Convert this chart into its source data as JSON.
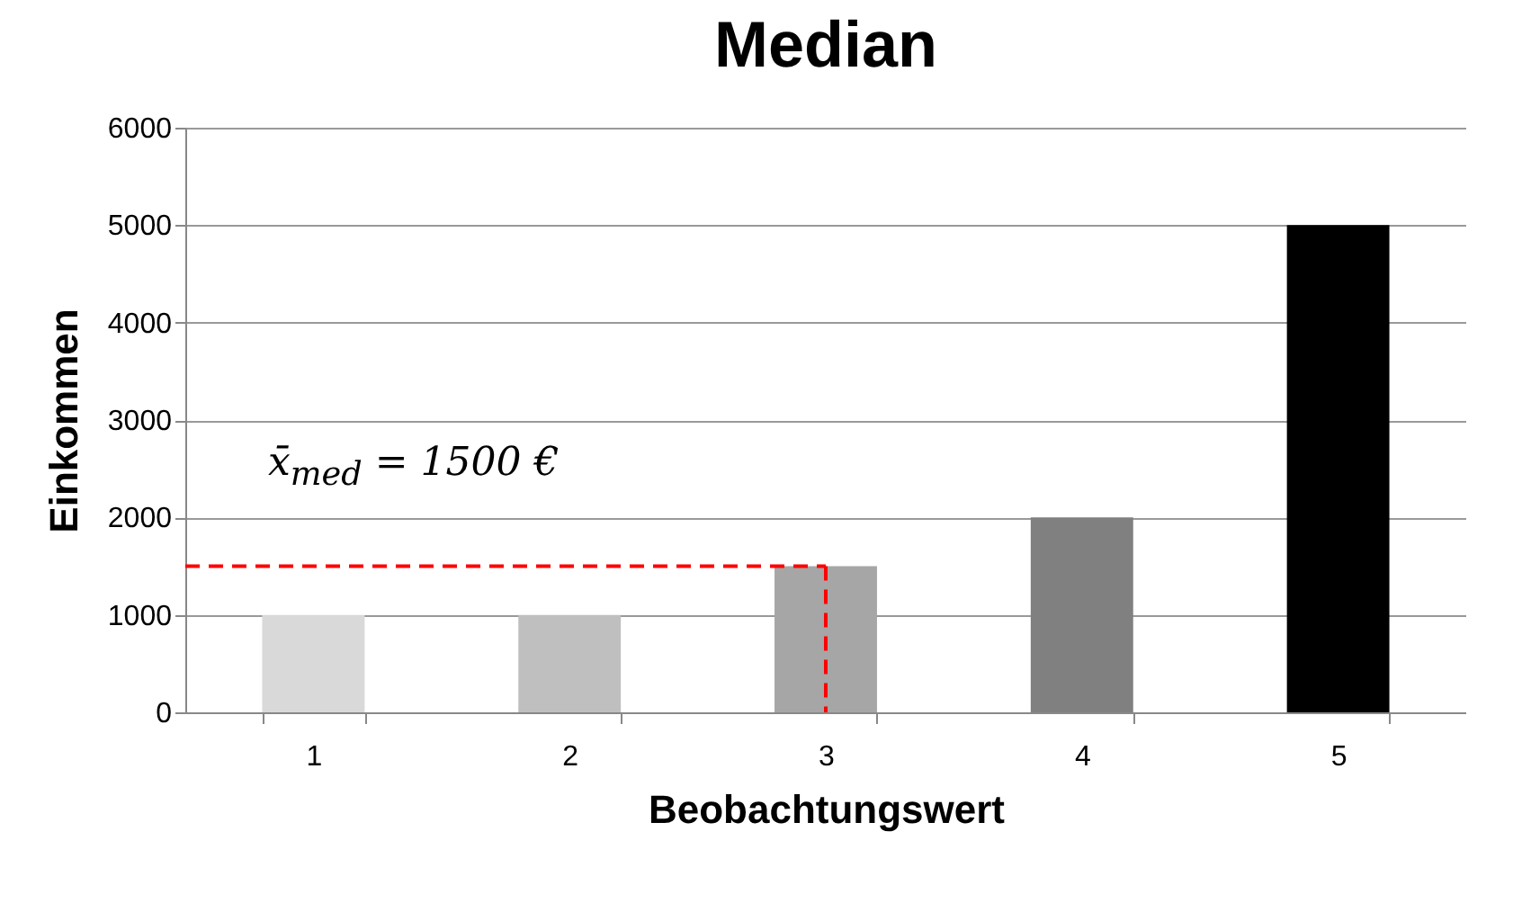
{
  "chart_data": {
    "type": "bar",
    "title": "Median",
    "xlabel": "Beobachtungswert",
    "ylabel": "Einkommen",
    "categories": [
      "1",
      "2",
      "3",
      "4",
      "5"
    ],
    "values": [
      1000,
      1000,
      1500,
      2000,
      5000
    ],
    "colors": [
      "#d9d9d9",
      "#bfbfbf",
      "#a6a6a6",
      "#808080",
      "#000000"
    ],
    "ylim": [
      0,
      6000
    ],
    "yticks": [
      0,
      1000,
      2000,
      3000,
      4000,
      5000,
      6000
    ],
    "grid": "y",
    "ref_lines": [
      {
        "axis": "y",
        "value": 1500,
        "color": "#ff0000",
        "line_style": "dashed"
      },
      {
        "axis": "x",
        "value": "3",
        "color": "#ff0000",
        "line_style": "dashed"
      }
    ],
    "annotations": [
      "x̄$_{med}$ = 1500 €"
    ]
  }
}
